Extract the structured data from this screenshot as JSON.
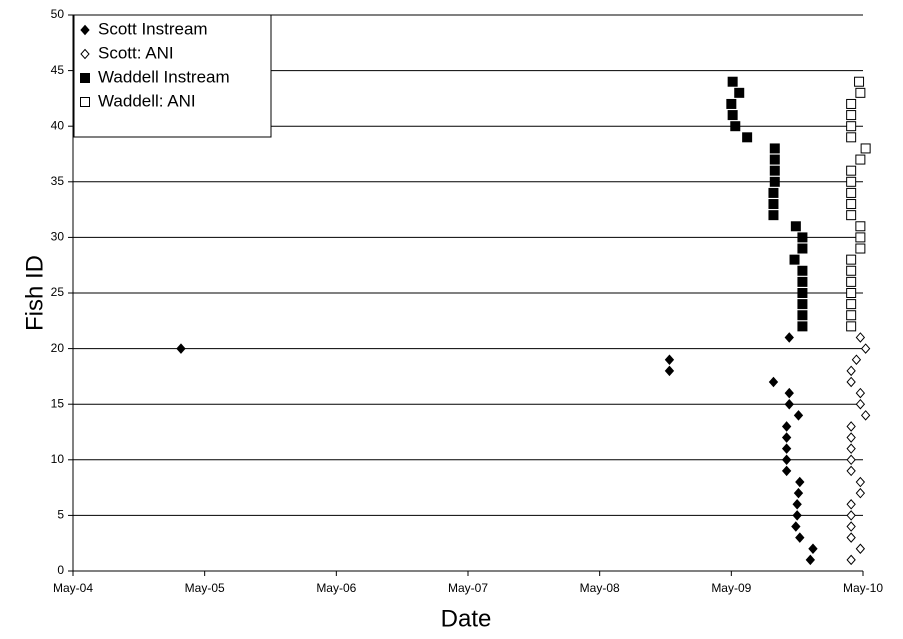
{
  "chart_data": {
    "type": "scatter",
    "xlabel": "Date",
    "ylabel": "Fish ID",
    "xlim": [
      2004.33,
      2010.33
    ],
    "xticks": [
      {
        "value": 2004.33,
        "label": "May-04"
      },
      {
        "value": 2005.33,
        "label": "May-05"
      },
      {
        "value": 2006.33,
        "label": "May-06"
      },
      {
        "value": 2007.33,
        "label": "May-07"
      },
      {
        "value": 2008.33,
        "label": "May-08"
      },
      {
        "value": 2009.33,
        "label": "May-09"
      },
      {
        "value": 2010.33,
        "label": "May-10"
      }
    ],
    "ylim": [
      0,
      50
    ],
    "yticks": [
      0,
      5,
      10,
      15,
      20,
      25,
      30,
      35,
      40,
      45,
      50
    ],
    "grid": true,
    "legend": "upper-left",
    "series": [
      {
        "name": "Scott Instream",
        "color": "#000000",
        "marker": "diamond",
        "marker_fill": "#000000",
        "x": [
          2005.15,
          2008.86,
          2008.86,
          2009.77,
          2009.65,
          2009.77,
          2009.77,
          2009.84,
          2009.75,
          2009.75,
          2009.75,
          2009.75,
          2009.75,
          2009.85,
          2009.84,
          2009.83,
          2009.83,
          2009.82,
          2009.85,
          2009.95,
          2009.93
        ],
        "values": [
          20,
          19,
          18,
          21,
          17,
          16,
          15,
          14,
          13,
          12,
          11,
          10,
          9,
          8,
          7,
          6,
          5,
          4,
          3,
          2,
          1
        ]
      },
      {
        "name": "Scott: ANI",
        "color": "#000000",
        "marker": "diamond",
        "marker_fill": "#ffffff",
        "x": [
          2010.31,
          2010.35,
          2010.28,
          2010.24,
          2010.24,
          2010.31,
          2010.31,
          2010.35,
          2010.24,
          2010.24,
          2010.24,
          2010.24,
          2010.24,
          2010.31,
          2010.31,
          2010.24,
          2010.24,
          2010.24,
          2010.24,
          2010.31,
          2010.24
        ],
        "values": [
          21,
          20,
          19,
          18,
          17,
          16,
          15,
          14,
          13,
          12,
          11,
          10,
          9,
          8,
          7,
          6,
          5,
          4,
          3,
          2,
          1
        ]
      },
      {
        "name": "Waddell Instream",
        "color": "#000000",
        "marker": "square",
        "marker_fill": "#000000",
        "x": [
          2009.34,
          2009.39,
          2009.33,
          2009.34,
          2009.36,
          2009.45,
          2009.66,
          2009.66,
          2009.66,
          2009.66,
          2009.65,
          2009.65,
          2009.65,
          2009.82,
          2009.87,
          2009.87,
          2009.81,
          2009.87,
          2009.87,
          2009.87,
          2009.87,
          2009.87,
          2009.87
        ],
        "values": [
          44,
          43,
          42,
          41,
          40,
          39,
          38,
          37,
          36,
          35,
          34,
          33,
          32,
          31,
          30,
          29,
          28,
          27,
          26,
          25,
          24,
          23,
          22
        ]
      },
      {
        "name": "Waddell: ANI",
        "color": "#000000",
        "marker": "square",
        "marker_fill": "#ffffff",
        "x": [
          2010.3,
          2010.31,
          2010.24,
          2010.24,
          2010.24,
          2010.24,
          2010.35,
          2010.31,
          2010.24,
          2010.24,
          2010.24,
          2010.24,
          2010.24,
          2010.31,
          2010.31,
          2010.31,
          2010.24,
          2010.24,
          2010.24,
          2010.24,
          2010.24,
          2010.24,
          2010.24
        ],
        "values": [
          44,
          43,
          42,
          41,
          40,
          39,
          38,
          37,
          36,
          35,
          34,
          33,
          32,
          31,
          30,
          29,
          28,
          27,
          26,
          25,
          24,
          23,
          22
        ]
      }
    ]
  }
}
